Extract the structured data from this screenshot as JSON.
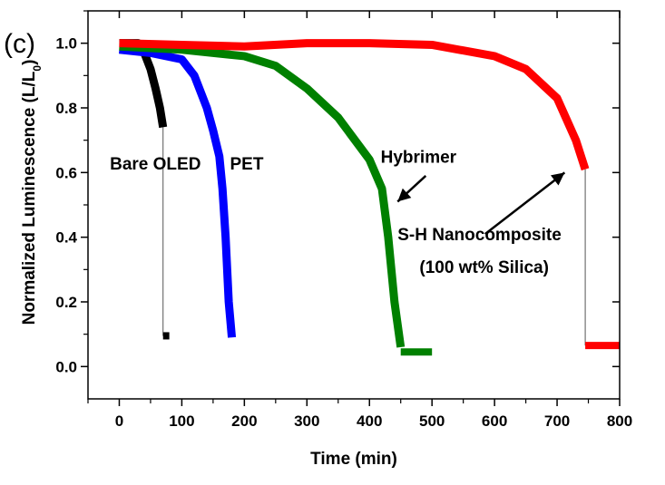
{
  "chart_data": {
    "type": "line",
    "panel_label": "(c)",
    "xlabel": "Time (min)",
    "ylabel_main": "Normalized Luminescence (L/L",
    "ylabel_sub": "0",
    "ylabel_close": ")",
    "xlim": [
      -50,
      800
    ],
    "ylim": [
      -0.1,
      1.1
    ],
    "xticks": [
      0,
      100,
      200,
      300,
      400,
      500,
      600,
      700,
      800
    ],
    "yticks": [
      0.0,
      0.2,
      0.4,
      0.6,
      0.8,
      1.0
    ],
    "xtick_labels": [
      "0",
      "100",
      "200",
      "300",
      "400",
      "500",
      "600",
      "700",
      "800"
    ],
    "ytick_labels": [
      "0.0",
      "0.2",
      "0.4",
      "0.6",
      "0.8",
      "1.0"
    ],
    "grid": false,
    "series": [
      {
        "color": "#000000",
        "x": [
          0,
          20,
          30,
          40,
          50,
          58,
          65,
          70
        ],
        "y": [
          1.0,
          1.0,
          1.0,
          0.97,
          0.92,
          0.86,
          0.8,
          0.74
        ],
        "tail_x": [
          70,
          80
        ],
        "tail_y": [
          0.095,
          0.095
        ]
      },
      {
        "color": "#0000ff",
        "x": [
          0,
          50,
          100,
          120,
          140,
          150,
          160,
          165,
          170,
          175,
          180
        ],
        "y": [
          0.98,
          0.97,
          0.95,
          0.9,
          0.8,
          0.73,
          0.65,
          0.55,
          0.4,
          0.2,
          0.09
        ],
        "tail_x": [],
        "tail_y": []
      },
      {
        "color": "#008000",
        "x": [
          0,
          100,
          200,
          250,
          300,
          350,
          400,
          420,
          430,
          440,
          450
        ],
        "y": [
          0.99,
          0.98,
          0.96,
          0.93,
          0.86,
          0.77,
          0.64,
          0.55,
          0.4,
          0.2,
          0.06
        ],
        "tail_x": [
          450,
          500
        ],
        "tail_y": [
          0.045,
          0.045
        ]
      },
      {
        "color": "#ff0000",
        "x": [
          0,
          100,
          200,
          300,
          400,
          500,
          600,
          650,
          700,
          730,
          745
        ],
        "y": [
          1.0,
          0.995,
          0.99,
          1.0,
          1.0,
          0.995,
          0.96,
          0.92,
          0.83,
          0.7,
          0.61
        ],
        "tail_x": [
          745,
          800
        ],
        "tail_y": [
          0.065,
          0.065
        ]
      }
    ],
    "drop_lines": [
      {
        "x": 70,
        "y_top": 0.74,
        "y_bottom": 0.095
      },
      {
        "x": 745,
        "y_top": 0.61,
        "y_bottom": 0.065
      }
    ],
    "annotations": [
      {
        "text": "Bare OLED",
        "x": -15,
        "y": 0.61
      },
      {
        "text": "PET",
        "x": 177,
        "y": 0.61
      },
      {
        "text": "Hybrimer",
        "x": 418,
        "y": 0.63
      },
      {
        "text": "S-H Nanocomposite",
        "x": 445,
        "y": 0.39
      },
      {
        "text": "(100 wt% Silica)",
        "x": 480,
        "y": 0.29
      }
    ],
    "arrows": [
      {
        "from_x": 490,
        "from_y": 0.59,
        "to_x": 445,
        "to_y": 0.51
      },
      {
        "from_x": 585,
        "from_y": 0.41,
        "to_x": 712,
        "to_y": 0.6
      }
    ]
  }
}
